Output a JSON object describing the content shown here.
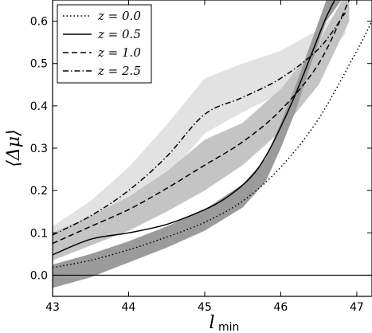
{
  "chart_data": {
    "type": "line",
    "xlabel": "l_min",
    "ylabel": "⟨Δμ⟩",
    "xlim": [
      43.0,
      47.2
    ],
    "ylim": [
      -0.05,
      0.65
    ],
    "xticks": [
      43,
      44,
      45,
      46,
      47
    ],
    "yticks": [
      0.0,
      0.1,
      0.2,
      0.3,
      0.4,
      0.5,
      0.6
    ],
    "x_tick_labels": [
      "43",
      "44",
      "45",
      "46",
      "47"
    ],
    "y_tick_labels": [
      "0.0",
      "0.1",
      "0.2",
      "0.3",
      "0.4",
      "0.5",
      "0.6"
    ],
    "grid": false,
    "legend_position": "top-left",
    "reference_line_y": 0.0,
    "series": [
      {
        "name": "z = 0.0",
        "style": "dotted",
        "color": "#000000",
        "x": [
          43.0,
          43.5,
          44.0,
          44.5,
          45.0,
          45.5,
          46.0,
          46.5,
          47.0,
          47.2
        ],
        "y": [
          0.018,
          0.035,
          0.06,
          0.09,
          0.125,
          0.175,
          0.255,
          0.37,
          0.53,
          0.6
        ]
      },
      {
        "name": "z = 0.5",
        "style": "solid",
        "color": "#000000",
        "x": [
          43.0,
          43.5,
          44.0,
          44.5,
          45.0,
          45.3,
          45.6,
          45.8,
          46.0,
          46.2,
          46.4,
          46.6,
          46.8
        ],
        "y": [
          0.048,
          0.085,
          0.1,
          0.12,
          0.155,
          0.185,
          0.23,
          0.28,
          0.35,
          0.43,
          0.52,
          0.61,
          0.68
        ]
      },
      {
        "name": "z = 1.0",
        "style": "dashed",
        "color": "#000000",
        "x": [
          43.0,
          43.5,
          44.0,
          44.5,
          45.0,
          45.5,
          46.0,
          46.5,
          46.9
        ],
        "y": [
          0.075,
          0.115,
          0.155,
          0.205,
          0.26,
          0.315,
          0.39,
          0.5,
          0.65
        ]
      },
      {
        "name": "z = 2.5",
        "style": "dashdot",
        "color": "#000000",
        "x": [
          43.0,
          43.5,
          44.0,
          44.5,
          45.0,
          45.5,
          46.0,
          46.5,
          46.85
        ],
        "y": [
          0.095,
          0.14,
          0.2,
          0.28,
          0.38,
          0.42,
          0.465,
          0.535,
          0.62
        ]
      }
    ],
    "bands": [
      {
        "fill": "#e2e2e2",
        "x": [
          43.0,
          43.5,
          44.0,
          44.5,
          45.0,
          45.5,
          46.0,
          46.5,
          46.85
        ],
        "lower": [
          0.045,
          0.09,
          0.15,
          0.23,
          0.335,
          0.385,
          0.43,
          0.5,
          0.57
        ],
        "upper": [
          0.115,
          0.175,
          0.255,
          0.355,
          0.465,
          0.5,
          0.53,
          0.58,
          0.64
        ]
      },
      {
        "fill": "#c4c4c4",
        "x": [
          43.0,
          43.5,
          44.0,
          44.5,
          45.0,
          45.5,
          46.0,
          46.5,
          46.9
        ],
        "lower": [
          0.035,
          0.07,
          0.105,
          0.15,
          0.2,
          0.26,
          0.34,
          0.45,
          0.6
        ],
        "upper": [
          0.1,
          0.14,
          0.185,
          0.245,
          0.32,
          0.36,
          0.44,
          0.55,
          0.68
        ]
      },
      {
        "fill": "#9b9b9b",
        "x": [
          43.0,
          43.5,
          44.0,
          44.5,
          45.0,
          45.5,
          45.8,
          46.0,
          46.2,
          46.4,
          46.6,
          46.8
        ],
        "lower": [
          -0.03,
          -0.005,
          0.03,
          0.065,
          0.105,
          0.16,
          0.22,
          0.3,
          0.39,
          0.5,
          0.6,
          0.65
        ],
        "upper": [
          0.025,
          0.05,
          0.08,
          0.115,
          0.155,
          0.215,
          0.275,
          0.36,
          0.45,
          0.55,
          0.65,
          0.68
        ]
      }
    ]
  }
}
